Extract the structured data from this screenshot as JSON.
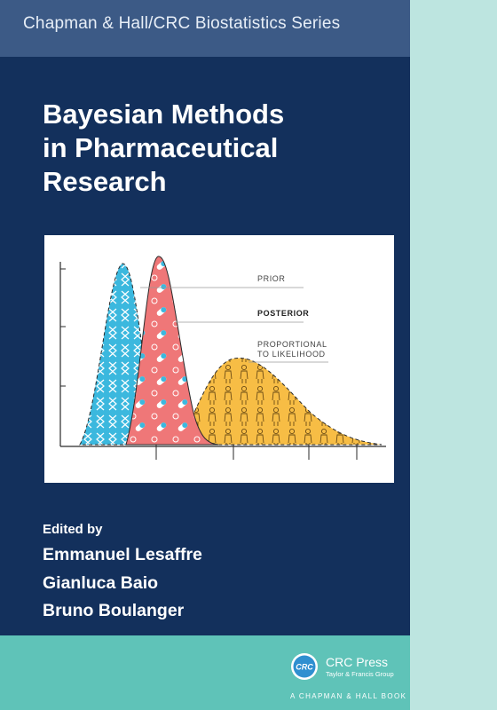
{
  "series": "Chapman & Hall/CRC Biostatistics Series",
  "title_lines": [
    "Bayesian Methods",
    "in Pharmaceutical",
    "Research"
  ],
  "figure": {
    "labels": {
      "prior": "PRIOR",
      "posterior": "POSTERIOR",
      "likelihood_line1": "PROPORTIONAL",
      "likelihood_line2": "TO LIKELIHOOD"
    },
    "colors": {
      "prior": "#3bb8de",
      "posterior": "#ef7778",
      "likelihood": "#f7bd45",
      "outline": "#2a2a2a"
    },
    "icons": {
      "prior": "dna-icon",
      "posterior": "pill-capsule-icon",
      "likelihood": "person-icon"
    }
  },
  "edited_by": "Edited by",
  "editors": [
    "Emmanuel Lesaffre",
    "Gianluca Baio",
    "Bruno Boulanger"
  ],
  "publisher": {
    "logo_text": "CRC",
    "name": "CRC Press",
    "group": "Taylor & Francis Group",
    "book_line": "A CHAPMAN & HALL BOOK"
  },
  "colors": {
    "cover_background": "#13305c",
    "series_band": "#3c5a86",
    "bottom_band": "#5fc3b8",
    "spine": "#bde5e0"
  }
}
